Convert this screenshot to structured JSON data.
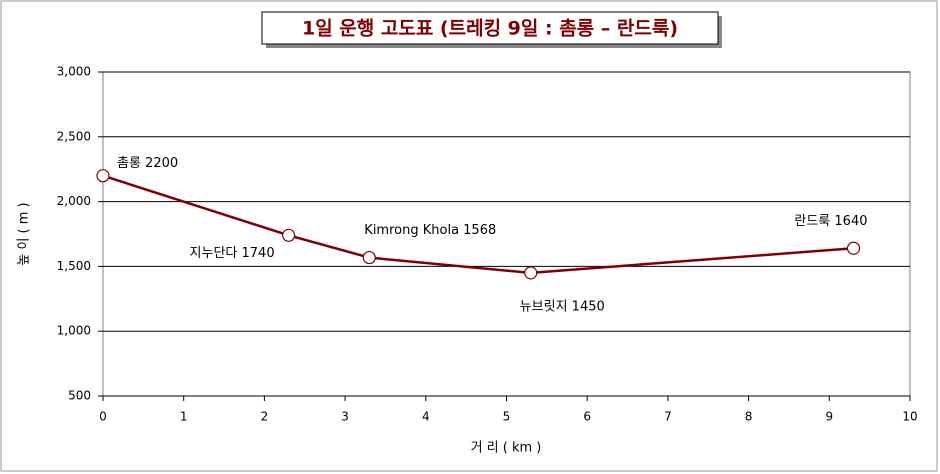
{
  "chart_data": {
    "type": "line",
    "title": "1일 운행 고도표 (트레킹 9일 : 촘롱 – 란드룩)",
    "x_label": "거    리 ( km )",
    "y_label": "높 이 ( m )",
    "x": [
      0,
      2.3,
      3.3,
      5.3,
      9.3
    ],
    "series": [
      {
        "color": "#800000",
        "values": [
          2200,
          1740,
          1568,
          1450,
          1640
        ],
        "value_labels": [
          "촘롱 2200",
          "지누단다 1740",
          "Kimrong Khola 1568",
          "뉴브릿지 1450",
          "란드룩 1640"
        ]
      }
    ],
    "xlim": [
      0,
      10
    ],
    "xticks": [
      0,
      1,
      2,
      3,
      4,
      5,
      6,
      7,
      8,
      9,
      10
    ],
    "ylim": [
      500,
      3000
    ],
    "yticks": [
      500,
      {
        "value": 1000,
        "label": "1,000"
      },
      {
        "value": 1500,
        "label": "1,500"
      },
      {
        "value": 2000,
        "label": "2,000"
      },
      {
        "value": 2500,
        "label": "2,500"
      },
      {
        "value": 3000,
        "label": "3,000"
      }
    ],
    "grid": true
  }
}
